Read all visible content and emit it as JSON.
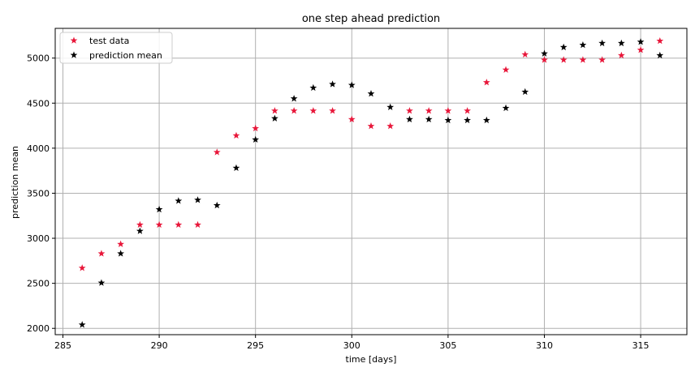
{
  "chart_data": {
    "type": "scatter",
    "title": "one step ahead prediction",
    "xlabel": "time [days]",
    "ylabel": "prediction mean",
    "xlim": [
      284.6,
      317.4
    ],
    "ylim": [
      1930,
      5330
    ],
    "xticks": [
      285,
      290,
      295,
      300,
      305,
      310,
      315
    ],
    "yticks": [
      2000,
      2500,
      3000,
      3500,
      4000,
      4500,
      5000
    ],
    "grid": true,
    "legend_position": "top-left",
    "marker": "star",
    "series": [
      {
        "name": "test data",
        "color": "#e8173a",
        "x": [
          286,
          287,
          288,
          289,
          290,
          291,
          292,
          293,
          294,
          295,
          296,
          297,
          298,
          299,
          300,
          301,
          302,
          303,
          304,
          305,
          306,
          307,
          308,
          309,
          310,
          311,
          312,
          313,
          314,
          315,
          316
        ],
        "y": [
          2670,
          2830,
          2935,
          3150,
          3150,
          3150,
          3150,
          3955,
          4140,
          4220,
          4415,
          4415,
          4415,
          4415,
          4320,
          4245,
          4245,
          4415,
          4415,
          4415,
          4415,
          4730,
          4870,
          5040,
          4980,
          4980,
          4980,
          4980,
          5030,
          5090,
          5190
        ]
      },
      {
        "name": "prediction mean",
        "color": "#000000",
        "x": [
          286,
          287,
          288,
          289,
          290,
          291,
          292,
          293,
          294,
          295,
          296,
          297,
          298,
          299,
          300,
          301,
          302,
          303,
          304,
          305,
          306,
          307,
          308,
          309,
          310,
          311,
          312,
          313,
          314,
          315,
          316
        ],
        "y": [
          2040,
          2505,
          2830,
          3080,
          3320,
          3415,
          3425,
          3365,
          3780,
          4095,
          4330,
          4550,
          4670,
          4710,
          4700,
          4605,
          4455,
          4320,
          4320,
          4310,
          4310,
          4310,
          4445,
          4625,
          5050,
          5120,
          5145,
          5165,
          5165,
          5180,
          5030
        ]
      }
    ]
  }
}
